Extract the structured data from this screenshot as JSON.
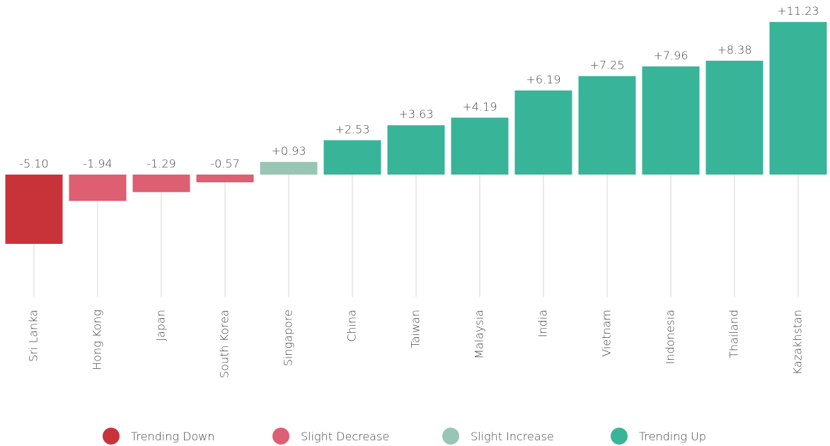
{
  "chart_data": {
    "type": "bar",
    "categories": [
      "Sri Lanka",
      "Hong Kong",
      "Japan",
      "South Korea",
      "Singapore",
      "China",
      "Taiwan",
      "Malaysia",
      "India",
      "Vietnam",
      "Indonesia",
      "Thailand",
      "Kazakhstan"
    ],
    "values": [
      -5.1,
      -1.94,
      -1.29,
      -0.57,
      0.93,
      2.53,
      3.63,
      4.19,
      6.19,
      7.25,
      7.96,
      8.38,
      11.23
    ],
    "value_labels": [
      "-5.10",
      "-1.94",
      "-1.29",
      "-0.57",
      "+0.93",
      "+2.53",
      "+3.63",
      "+4.19",
      "+6.19",
      "+7.25",
      "+7.96",
      "+8.38",
      "+11.23"
    ],
    "colors": [
      "#c8333a",
      "#dc5f72",
      "#dc5f72",
      "#dc5f72",
      "#98c5b4",
      "#38b499",
      "#38b499",
      "#38b499",
      "#38b499",
      "#38b499",
      "#38b499",
      "#38b499",
      "#38b499"
    ],
    "ylim": [
      -9,
      12.5
    ],
    "legend": [
      {
        "name": "Trending Down",
        "color": "#c8333a"
      },
      {
        "name": "Slight Decrease",
        "color": "#dc5f72"
      },
      {
        "name": "Slight Increase",
        "color": "#98c5b4"
      },
      {
        "name": "Trending Up",
        "color": "#38b499"
      }
    ]
  }
}
